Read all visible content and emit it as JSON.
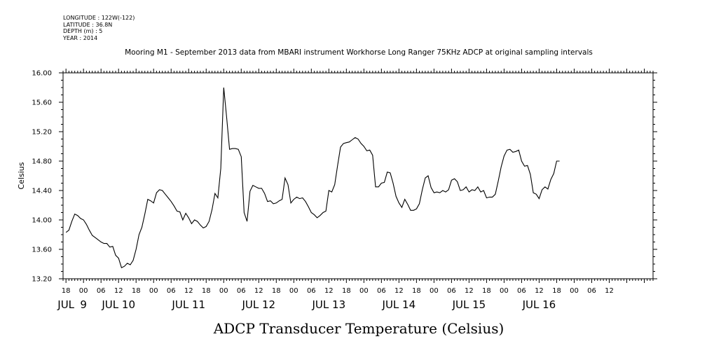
{
  "metadata": {
    "longitude": "LONGITUDE : 122W(-122)",
    "latitude": "LATITUDE : 36.8N",
    "depth": "DEPTH (m) : 5",
    "year": "YEAR : 2014"
  },
  "chart_data": {
    "type": "line",
    "title": "Mooring M1 - September 2013 data from MBARI instrument Workhorse Long Ranger 75KHz ADCP at original sampling intervals",
    "xlabel": "ADCP Transducer Temperature (Celsius)",
    "ylabel": "Celsius",
    "ylim": [
      13.2,
      16.0
    ],
    "yticks": [
      "13.20",
      "13.60",
      "14.00",
      "14.40",
      "14.80",
      "15.20",
      "15.60",
      "16.00"
    ],
    "xlim": [
      -7,
      195
    ],
    "x_units": "hours from JUL 9 00:00",
    "xticks": [
      {
        "x": -6,
        "label": "18"
      },
      {
        "x": 0,
        "label": "00"
      },
      {
        "x": 6,
        "label": "06"
      },
      {
        "x": 12,
        "label": "12"
      },
      {
        "x": 18,
        "label": "18"
      },
      {
        "x": 24,
        "label": "00"
      },
      {
        "x": 30,
        "label": "06"
      },
      {
        "x": 36,
        "label": "12"
      },
      {
        "x": 42,
        "label": "18"
      },
      {
        "x": 48,
        "label": "00"
      },
      {
        "x": 54,
        "label": "06"
      },
      {
        "x": 60,
        "label": "12"
      },
      {
        "x": 66,
        "label": "18"
      },
      {
        "x": 72,
        "label": "00"
      },
      {
        "x": 78,
        "label": "06"
      },
      {
        "x": 84,
        "label": "12"
      },
      {
        "x": 90,
        "label": "18"
      },
      {
        "x": 96,
        "label": "00"
      },
      {
        "x": 102,
        "label": "06"
      },
      {
        "x": 108,
        "label": "12"
      },
      {
        "x": 114,
        "label": "18"
      },
      {
        "x": 120,
        "label": "00"
      },
      {
        "x": 126,
        "label": "06"
      },
      {
        "x": 132,
        "label": "12"
      },
      {
        "x": 138,
        "label": "18"
      },
      {
        "x": 144,
        "label": "00"
      },
      {
        "x": 150,
        "label": "06"
      },
      {
        "x": 156,
        "label": "12"
      },
      {
        "x": 162,
        "label": "18"
      },
      {
        "x": 168,
        "label": "00"
      },
      {
        "x": 174,
        "label": "06"
      },
      {
        "x": 180,
        "label": "12"
      }
    ],
    "day_labels": [
      {
        "x": -6,
        "label": "JUL"
      },
      {
        "x": 0,
        "label": "9"
      },
      {
        "x": 12,
        "label": "JUL 10"
      },
      {
        "x": 36,
        "label": "JUL 11"
      },
      {
        "x": 60,
        "label": "JUL 12"
      },
      {
        "x": 84,
        "label": "JUL 13"
      },
      {
        "x": 108,
        "label": "JUL 14"
      },
      {
        "x": 132,
        "label": "JUL 15"
      },
      {
        "x": 156,
        "label": "JUL 16"
      }
    ],
    "series": [
      {
        "values": [
          [
            -6.0,
            13.83
          ],
          [
            -5.0,
            13.86
          ],
          [
            -4.0,
            13.98
          ],
          [
            -3.0,
            14.08
          ],
          [
            -2.0,
            14.06
          ],
          [
            -1.0,
            14.02
          ],
          [
            0.0,
            14.0
          ],
          [
            1.0,
            13.94
          ],
          [
            2.0,
            13.86
          ],
          [
            3.0,
            13.79
          ],
          [
            4.0,
            13.76
          ],
          [
            5.0,
            13.73
          ],
          [
            6.0,
            13.7
          ],
          [
            7.0,
            13.68
          ],
          [
            8.0,
            13.68
          ],
          [
            9.0,
            13.63
          ],
          [
            10.0,
            13.64
          ],
          [
            11.0,
            13.52
          ],
          [
            12.0,
            13.48
          ],
          [
            13.0,
            13.35
          ],
          [
            14.0,
            13.37
          ],
          [
            15.0,
            13.41
          ],
          [
            16.0,
            13.39
          ],
          [
            17.0,
            13.45
          ],
          [
            18.0,
            13.6
          ],
          [
            19.0,
            13.8
          ],
          [
            20.0,
            13.9
          ],
          [
            21.0,
            14.08
          ],
          [
            22.0,
            14.28
          ],
          [
            23.0,
            14.26
          ],
          [
            24.0,
            14.23
          ],
          [
            25.0,
            14.37
          ],
          [
            26.0,
            14.41
          ],
          [
            27.0,
            14.4
          ],
          [
            28.0,
            14.35
          ],
          [
            29.0,
            14.3
          ],
          [
            30.0,
            14.25
          ],
          [
            31.0,
            14.19
          ],
          [
            32.0,
            14.12
          ],
          [
            33.0,
            14.11
          ],
          [
            34.0,
            14.0
          ],
          [
            35.0,
            14.09
          ],
          [
            36.0,
            14.03
          ],
          [
            37.0,
            13.95
          ],
          [
            38.0,
            14.0
          ],
          [
            39.0,
            13.98
          ],
          [
            40.0,
            13.93
          ],
          [
            41.0,
            13.89
          ],
          [
            42.0,
            13.91
          ],
          [
            43.0,
            13.98
          ],
          [
            44.0,
            14.14
          ],
          [
            45.0,
            14.36
          ],
          [
            46.0,
            14.3
          ],
          [
            47.0,
            14.7
          ],
          [
            48.0,
            15.8
          ],
          [
            49.0,
            15.4
          ],
          [
            50.0,
            14.96
          ],
          [
            51.0,
            14.97
          ],
          [
            52.0,
            14.97
          ],
          [
            53.0,
            14.96
          ],
          [
            54.0,
            14.86
          ],
          [
            55.0,
            14.1
          ],
          [
            56.0,
            13.98
          ],
          [
            57.0,
            14.39
          ],
          [
            58.0,
            14.47
          ],
          [
            59.0,
            14.45
          ],
          [
            60.0,
            14.43
          ],
          [
            61.0,
            14.43
          ],
          [
            62.0,
            14.36
          ],
          [
            63.0,
            14.25
          ],
          [
            64.0,
            14.26
          ],
          [
            65.0,
            14.22
          ],
          [
            66.0,
            14.23
          ],
          [
            67.0,
            14.26
          ],
          [
            68.0,
            14.28
          ],
          [
            69.0,
            14.57
          ],
          [
            70.0,
            14.48
          ],
          [
            71.0,
            14.23
          ],
          [
            72.0,
            14.28
          ],
          [
            73.0,
            14.31
          ],
          [
            74.0,
            14.29
          ],
          [
            75.0,
            14.3
          ],
          [
            76.0,
            14.25
          ],
          [
            77.0,
            14.18
          ],
          [
            78.0,
            14.1
          ],
          [
            79.0,
            14.07
          ],
          [
            80.0,
            14.03
          ],
          [
            81.0,
            14.06
          ],
          [
            82.0,
            14.1
          ],
          [
            83.0,
            14.12
          ],
          [
            84.0,
            14.4
          ],
          [
            85.0,
            14.38
          ],
          [
            86.0,
            14.48
          ],
          [
            87.0,
            14.74
          ],
          [
            88.0,
            14.99
          ],
          [
            89.0,
            15.04
          ],
          [
            90.0,
            15.05
          ],
          [
            91.0,
            15.06
          ],
          [
            92.0,
            15.09
          ],
          [
            93.0,
            15.12
          ],
          [
            94.0,
            15.1
          ],
          [
            95.0,
            15.04
          ],
          [
            96.0,
            15.0
          ],
          [
            97.0,
            14.94
          ],
          [
            98.0,
            14.95
          ],
          [
            99.0,
            14.88
          ],
          [
            100.0,
            14.45
          ],
          [
            101.0,
            14.45
          ],
          [
            102.0,
            14.5
          ],
          [
            103.0,
            14.51
          ],
          [
            104.0,
            14.65
          ],
          [
            105.0,
            14.64
          ],
          [
            106.0,
            14.5
          ],
          [
            107.0,
            14.32
          ],
          [
            108.0,
            14.23
          ],
          [
            109.0,
            14.17
          ],
          [
            110.0,
            14.28
          ],
          [
            111.0,
            14.21
          ],
          [
            112.0,
            14.13
          ],
          [
            113.0,
            14.13
          ],
          [
            114.0,
            14.15
          ],
          [
            115.0,
            14.22
          ],
          [
            116.0,
            14.41
          ],
          [
            117.0,
            14.57
          ],
          [
            118.0,
            14.6
          ],
          [
            119.0,
            14.44
          ],
          [
            120.0,
            14.37
          ],
          [
            121.0,
            14.38
          ],
          [
            122.0,
            14.37
          ],
          [
            123.0,
            14.4
          ],
          [
            124.0,
            14.38
          ],
          [
            125.0,
            14.41
          ],
          [
            126.0,
            14.54
          ],
          [
            127.0,
            14.56
          ],
          [
            128.0,
            14.52
          ],
          [
            129.0,
            14.4
          ],
          [
            130.0,
            14.41
          ],
          [
            131.0,
            14.45
          ],
          [
            132.0,
            14.38
          ],
          [
            133.0,
            14.41
          ],
          [
            134.0,
            14.4
          ],
          [
            135.0,
            14.45
          ],
          [
            136.0,
            14.38
          ],
          [
            137.0,
            14.4
          ],
          [
            138.0,
            14.3
          ],
          [
            139.0,
            14.31
          ],
          [
            140.0,
            14.31
          ],
          [
            141.0,
            14.35
          ],
          [
            142.0,
            14.53
          ],
          [
            143.0,
            14.72
          ],
          [
            144.0,
            14.87
          ],
          [
            145.0,
            14.95
          ],
          [
            146.0,
            14.96
          ],
          [
            147.0,
            14.92
          ],
          [
            148.0,
            14.93
          ],
          [
            149.0,
            14.95
          ],
          [
            150.0,
            14.8
          ],
          [
            151.0,
            14.73
          ],
          [
            152.0,
            14.74
          ],
          [
            153.0,
            14.62
          ],
          [
            154.0,
            14.37
          ],
          [
            155.0,
            14.35
          ],
          [
            156.0,
            14.29
          ],
          [
            157.0,
            14.41
          ],
          [
            158.0,
            14.45
          ],
          [
            159.0,
            14.42
          ],
          [
            160.0,
            14.55
          ],
          [
            161.0,
            14.63
          ],
          [
            162.0,
            14.8
          ],
          [
            163.0,
            14.8
          ]
        ]
      }
    ]
  }
}
